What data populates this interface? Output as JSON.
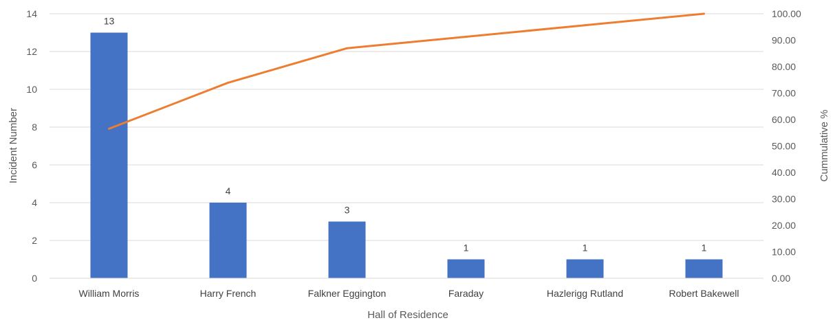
{
  "chart_data": {
    "type": "bar",
    "xlabel": "Hall of Residence",
    "ylabel": "Incident Number",
    "y2label": "Cummulative %",
    "categories": [
      "William Morris",
      "Harry French",
      "Falkner Eggington",
      "Faraday",
      "Hazlerigg Rutland",
      "Robert Bakewell"
    ],
    "series": [
      {
        "type": "bar",
        "values": [
          13,
          4,
          3,
          1,
          1,
          1
        ],
        "color": "#4472C4",
        "axis": "left"
      },
      {
        "type": "line",
        "values": [
          56.52,
          73.91,
          86.96,
          91.3,
          95.65,
          100.0
        ],
        "color": "#ED7D31",
        "axis": "right"
      }
    ],
    "ylim": [
      0,
      14
    ],
    "y2lim": [
      0,
      100
    ],
    "yticks": [
      "0",
      "2",
      "4",
      "6",
      "8",
      "10",
      "12",
      "14"
    ],
    "y2ticks": [
      "0.00",
      "10.00",
      "20.00",
      "30.00",
      "40.00",
      "50.00",
      "60.00",
      "70.00",
      "80.00",
      "90.00",
      "100.00"
    ],
    "data_labels": [
      "13",
      "4",
      "3",
      "1",
      "1",
      "1"
    ],
    "grid": true,
    "legend": "none"
  }
}
